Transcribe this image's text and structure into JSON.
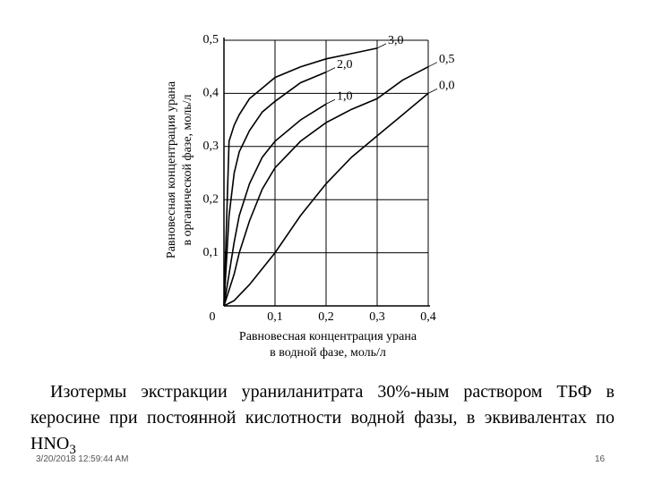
{
  "chart_data": {
    "type": "line",
    "ylabel": [
      "Равновесная концентрация урана",
      "в органической фазе, моль/л"
    ],
    "xlabel": [
      "Равновесная концентрация урана",
      "в водной фазе, моль/л"
    ],
    "x": [
      0,
      0.01,
      0.02,
      0.03,
      0.05,
      0.075,
      0.1,
      0.15,
      0.2,
      0.25,
      0.3,
      0.35,
      0.4
    ],
    "series": [
      {
        "name": "3,0",
        "color": "#000000",
        "values": [
          0,
          0.31,
          0.34,
          0.36,
          0.39,
          0.41,
          0.43,
          0.45,
          0.465,
          0.475,
          0.485,
          null,
          null
        ]
      },
      {
        "name": "2,0",
        "color": "#000000",
        "values": [
          0,
          0.17,
          0.25,
          0.29,
          0.33,
          0.365,
          0.385,
          0.42,
          0.44,
          null,
          null,
          null,
          null
        ]
      },
      {
        "name": "1,0",
        "color": "#000000",
        "values": [
          0,
          0.06,
          0.12,
          0.17,
          0.23,
          0.28,
          0.31,
          0.35,
          0.38,
          null,
          null,
          null,
          null
        ]
      },
      {
        "name": "0,5",
        "color": "#000000",
        "values": [
          0,
          0.03,
          0.06,
          0.1,
          0.16,
          0.22,
          0.26,
          0.31,
          0.345,
          0.37,
          0.39,
          0.425,
          0.45
        ]
      },
      {
        "name": "0,0",
        "color": "#000000",
        "values": [
          0,
          0.005,
          0.01,
          0.02,
          0.04,
          0.07,
          0.1,
          0.17,
          0.23,
          0.28,
          0.32,
          0.36,
          0.4
        ]
      }
    ],
    "xlim": [
      0,
      0.4
    ],
    "ylim": [
      0,
      0.5
    ],
    "xticks": [
      0,
      {
        "value": 0.1,
        "label": "0,1"
      },
      {
        "value": 0.2,
        "label": "0,2"
      },
      {
        "value": 0.3,
        "label": "0,3"
      },
      {
        "value": 0.4,
        "label": "0,4"
      }
    ],
    "yticks": [
      {
        "value": 0.1,
        "label": "0,1"
      },
      {
        "value": 0.2,
        "label": "0,2"
      },
      {
        "value": 0.3,
        "label": "0,3"
      },
      {
        "value": 0.4,
        "label": "0,4"
      },
      {
        "value": 0.5,
        "label": "0,5"
      }
    ],
    "grid": true
  },
  "caption": {
    "text": "Изотермы экстракции ураниланитрата 30%-ным раствором ТБФ в керосине при постоянной кислотности водной фазы, в эквивалентах по HNO",
    "sub": "3"
  },
  "footer": {
    "date": "3/20/2018 12:59:44 AM",
    "page": "16"
  }
}
